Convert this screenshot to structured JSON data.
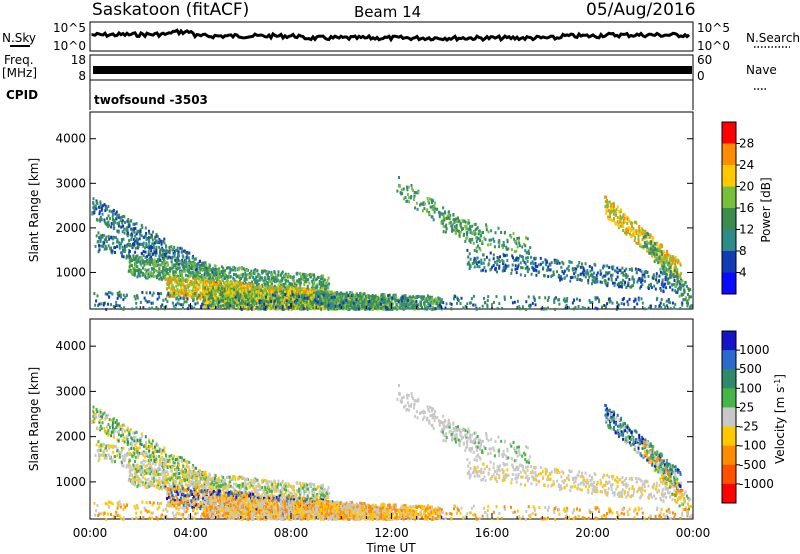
{
  "header": {
    "title": "Saskatoon (fitACF)",
    "beam": "Beam 14",
    "date": "05/Aug/2016"
  },
  "sky_panel": {
    "left_label": "N.Sky",
    "left_ticks": [
      "10^5",
      "10^0"
    ],
    "right_ticks": [
      "10^5",
      "10^0"
    ],
    "right_label": "N.Search"
  },
  "freq_panel": {
    "left_label_1": "Freq.",
    "left_label_2": "[MHz]",
    "left_ticks": [
      "18",
      "8"
    ],
    "right_ticks": [
      "60",
      "0"
    ],
    "right_label": "Nave"
  },
  "cpid_panel": {
    "left_label": "CPID",
    "program": "twofsound -3503"
  },
  "chart_data": [
    {
      "type": "heatmap",
      "name": "power",
      "xlabel": "",
      "ylabel": "Slant Range [km]",
      "x_tick_labels": [
        "00:00",
        "04:00",
        "08:00",
        "12:00",
        "16:00",
        "20:00",
        "00:00"
      ],
      "y_ticks": [
        1000,
        2000,
        3000,
        4000
      ],
      "ylim": [
        180,
        4600
      ],
      "colorbar_label": "Power [dB]",
      "colorbar_ticks": [
        4,
        8,
        12,
        16,
        20,
        24,
        28
      ],
      "colorbar_colors": [
        "#0a0aff",
        "#123cb4",
        "#2f8a8a",
        "#3c8c4e",
        "#78c03c",
        "#ffc800",
        "#ff8c00",
        "#ff0000"
      ]
    },
    {
      "type": "heatmap",
      "name": "velocity",
      "xlabel": "Time UT",
      "ylabel": "Slant Range [km]",
      "x_tick_labels": [
        "00:00",
        "04:00",
        "08:00",
        "12:00",
        "16:00",
        "20:00",
        "00:00"
      ],
      "y_ticks": [
        1000,
        2000,
        3000,
        4000
      ],
      "ylim": [
        180,
        4600
      ],
      "colorbar_label": "Velocity [m s^-1]",
      "colorbar_ticks": [
        "1000",
        "500",
        "100",
        "25",
        "-25",
        "-100",
        "-500",
        "-1000"
      ],
      "colorbar_colors": [
        "#1414c8",
        "#2a6acf",
        "#2f8a6a",
        "#46b446",
        "#c8c8c8",
        "#ffc800",
        "#ff8c00",
        "#ff5000",
        "#ff0000"
      ]
    }
  ]
}
